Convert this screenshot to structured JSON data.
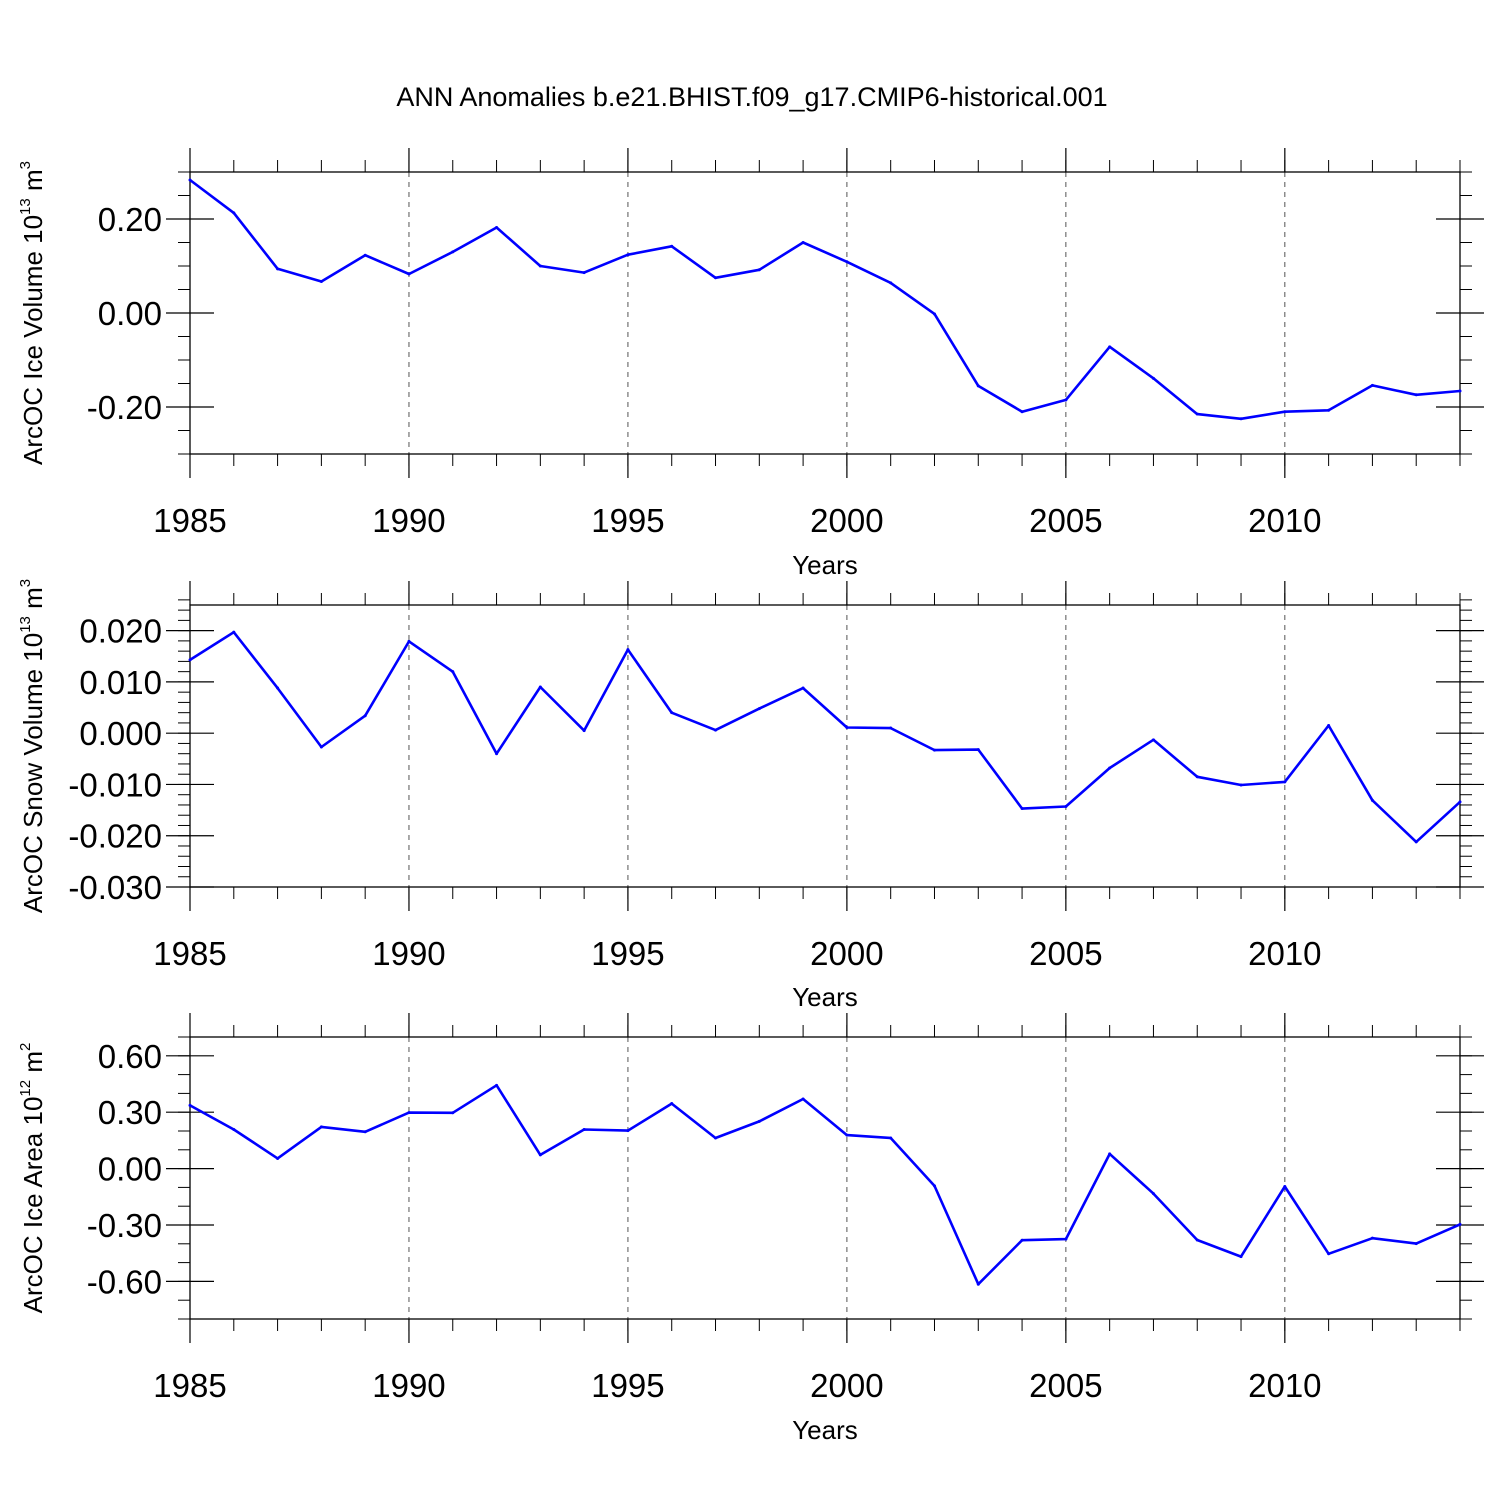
{
  "title": "ANN Anomalies b.e21.BHIST.f09_g17.CMIP6-historical.001",
  "line_color": "#0000ff",
  "chart_data": [
    {
      "type": "line",
      "title": "ANN Anomalies b.e21.BHIST.f09_g17.CMIP6-historical.001",
      "xlabel": "Years",
      "ylabel_main": "ArcOC Ice Volume 10",
      "ylabel_exp": "13",
      "ylabel_tail": " m",
      "ylabel_unit_exp": "3",
      "xlim": [
        1985,
        2014
      ],
      "ylim": [
        -0.3,
        0.3
      ],
      "yticks": [
        -0.2,
        0.0,
        0.2
      ],
      "yticklabels": [
        "-0.20",
        "0.00",
        "0.20"
      ],
      "yminor_step": 0.05,
      "xticks": [
        1985,
        1990,
        1995,
        2000,
        2005,
        2010
      ],
      "xticklabels": [
        "1985",
        "1990",
        "1995",
        "2000",
        "2005",
        "2010"
      ],
      "x": [
        1985,
        1986,
        1987,
        1988,
        1989,
        1990,
        1991,
        1992,
        1993,
        1994,
        1995,
        1996,
        1997,
        1998,
        1999,
        2000,
        2001,
        2002,
        2003,
        2004,
        2005,
        2006,
        2007,
        2008,
        2009,
        2010,
        2011,
        2012,
        2013,
        2014
      ],
      "series": [
        {
          "name": "Ice Volume",
          "values": [
            0.283,
            0.213,
            0.094,
            0.067,
            0.123,
            0.083,
            0.13,
            0.182,
            0.1,
            0.086,
            0.124,
            0.142,
            0.075,
            0.092,
            0.15,
            0.109,
            0.064,
            -0.002,
            -0.155,
            -0.21,
            -0.185,
            -0.072,
            -0.139,
            -0.215,
            -0.225,
            -0.21,
            -0.207,
            -0.154,
            -0.174,
            -0.166
          ]
        }
      ]
    },
    {
      "type": "line",
      "xlabel": "Years",
      "ylabel_main": "ArcOC Snow Volume 10",
      "ylabel_exp": "13",
      "ylabel_tail": " m",
      "ylabel_unit_exp": "3",
      "xlim": [
        1985,
        2014
      ],
      "ylim": [
        -0.03,
        0.025
      ],
      "yticks": [
        -0.03,
        -0.02,
        -0.01,
        0.0,
        0.01,
        0.02
      ],
      "yticklabels": [
        "-0.030",
        "-0.020",
        "-0.010",
        "0.000",
        "0.010",
        "0.020"
      ],
      "yminor_step": 0.002,
      "xticks": [
        1985,
        1990,
        1995,
        2000,
        2005,
        2010
      ],
      "xticklabels": [
        "1985",
        "1990",
        "1995",
        "2000",
        "2005",
        "2010"
      ],
      "x": [
        1985,
        1986,
        1987,
        1988,
        1989,
        1990,
        1991,
        1992,
        1993,
        1994,
        1995,
        1996,
        1997,
        1998,
        1999,
        2000,
        2001,
        2002,
        2003,
        2004,
        2005,
        2006,
        2007,
        2008,
        2009,
        2010,
        2011,
        2012,
        2013,
        2014
      ],
      "series": [
        {
          "name": "Snow Volume",
          "values": [
            0.0143,
            0.0197,
            0.0088,
            -0.0027,
            0.0034,
            0.0179,
            0.012,
            -0.004,
            0.009,
            0.0005,
            0.0163,
            0.004,
            0.0006,
            0.0048,
            0.0088,
            0.0011,
            0.001,
            -0.0033,
            -0.0032,
            -0.0147,
            -0.0143,
            -0.0068,
            -0.0013,
            -0.0085,
            -0.0101,
            -0.0095,
            0.0015,
            -0.0131,
            -0.0212,
            -0.0134
          ]
        }
      ]
    },
    {
      "type": "line",
      "xlabel": "Years",
      "ylabel_main": "ArcOC Ice Area 10",
      "ylabel_exp": "12",
      "ylabel_tail": " m",
      "ylabel_unit_exp": "2",
      "xlim": [
        1985,
        2014
      ],
      "ylim": [
        -0.8,
        0.7
      ],
      "yticks": [
        -0.6,
        -0.3,
        0.0,
        0.3,
        0.6
      ],
      "yticklabels": [
        "-0.60",
        "-0.30",
        "0.00",
        "0.30",
        "0.60"
      ],
      "yminor_step": 0.1,
      "xticks": [
        1985,
        1990,
        1995,
        2000,
        2005,
        2010
      ],
      "xticklabels": [
        "1985",
        "1990",
        "1995",
        "2000",
        "2005",
        "2010"
      ],
      "x": [
        1985,
        1986,
        1987,
        1988,
        1989,
        1990,
        1991,
        1992,
        1993,
        1994,
        1995,
        1996,
        1997,
        1998,
        1999,
        2000,
        2001,
        2002,
        2003,
        2004,
        2005,
        2006,
        2007,
        2008,
        2009,
        2010,
        2011,
        2012,
        2013,
        2014
      ],
      "series": [
        {
          "name": "Ice Area",
          "values": [
            0.336,
            0.208,
            0.054,
            0.222,
            0.196,
            0.298,
            0.297,
            0.443,
            0.073,
            0.208,
            0.202,
            0.346,
            0.163,
            0.251,
            0.37,
            0.178,
            0.163,
            -0.092,
            -0.615,
            -0.381,
            -0.375,
            0.078,
            -0.133,
            -0.38,
            -0.468,
            -0.095,
            -0.453,
            -0.37,
            -0.399,
            -0.297
          ]
        }
      ]
    }
  ]
}
